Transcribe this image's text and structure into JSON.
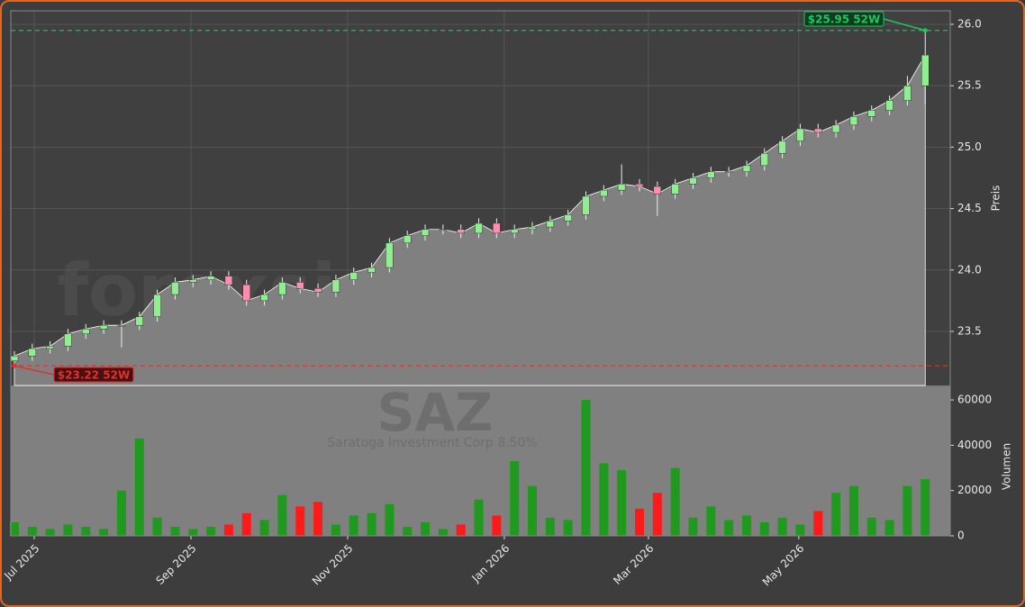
{
  "chart_data": [
    {
      "type": "candlestick",
      "watermark": "forexsignale.trade",
      "symbol": "SAZ",
      "subtitle": "Saratoga Investment Corp 8.50%",
      "ylabel": "Preis",
      "ylim": [
        23.06,
        26.11
      ],
      "yticks": [
        23.5,
        {
          "value": 24,
          "label": "24.0"
        },
        24.5,
        {
          "value": 25,
          "label": "25.0"
        },
        25.5,
        {
          "value": 26,
          "label": "26.0"
        }
      ],
      "grid": true,
      "up_color": "#90ee90",
      "down_color": "#ff8fb0",
      "area_color": "#808080",
      "open": [
        23.26,
        23.3,
        23.36,
        23.38,
        23.48,
        23.52,
        23.55,
        23.55,
        23.62,
        23.8,
        23.9,
        23.92,
        23.95,
        23.88,
        23.75,
        23.8,
        23.9,
        23.85,
        23.82,
        23.92,
        23.98,
        24.02,
        24.22,
        24.28,
        24.33,
        24.33,
        24.3,
        24.38,
        24.3,
        24.33,
        24.35,
        24.4,
        24.45,
        24.6,
        24.65,
        24.7,
        24.68,
        24.62,
        24.7,
        24.75,
        24.8,
        24.8,
        24.85,
        24.95,
        25.05,
        25.15,
        25.12,
        25.18,
        25.25,
        25.3,
        25.38,
        25.5
      ],
      "high": [
        23.34,
        23.4,
        23.42,
        23.52,
        23.56,
        23.59,
        23.59,
        23.66,
        23.84,
        23.94,
        23.96,
        23.99,
        23.99,
        23.92,
        23.84,
        23.94,
        23.94,
        23.89,
        23.96,
        24.02,
        24.06,
        24.26,
        24.32,
        24.37,
        24.37,
        24.37,
        24.42,
        24.42,
        24.37,
        24.39,
        24.44,
        24.49,
        24.64,
        24.69,
        24.86,
        24.74,
        24.72,
        24.74,
        24.79,
        24.84,
        24.84,
        24.89,
        24.99,
        25.09,
        25.19,
        25.19,
        25.22,
        25.29,
        25.34,
        25.42,
        25.58,
        25.95
      ],
      "low": [
        23.22,
        23.26,
        23.32,
        23.34,
        23.44,
        23.48,
        23.37,
        23.51,
        23.58,
        23.76,
        23.86,
        23.88,
        23.84,
        23.71,
        23.71,
        23.76,
        23.81,
        23.78,
        23.78,
        23.88,
        23.94,
        23.98,
        24.18,
        24.24,
        24.29,
        24.26,
        24.26,
        24.26,
        24.26,
        24.29,
        24.31,
        24.36,
        24.41,
        24.56,
        24.61,
        24.64,
        24.44,
        24.58,
        24.66,
        24.71,
        24.76,
        24.76,
        24.81,
        24.91,
        25.01,
        25.08,
        25.08,
        25.14,
        25.21,
        25.26,
        25.34,
        25.35
      ],
      "close": [
        23.3,
        23.36,
        23.38,
        23.48,
        23.52,
        23.55,
        23.55,
        23.62,
        23.8,
        23.9,
        23.92,
        23.95,
        23.88,
        23.75,
        23.8,
        23.9,
        23.85,
        23.82,
        23.92,
        23.98,
        24.02,
        24.22,
        24.28,
        24.33,
        24.33,
        24.3,
        24.38,
        24.3,
        24.33,
        24.35,
        24.4,
        24.45,
        24.6,
        24.65,
        24.7,
        24.68,
        24.62,
        24.7,
        24.75,
        24.8,
        24.8,
        24.85,
        24.95,
        25.05,
        25.15,
        25.12,
        25.18,
        25.25,
        25.3,
        25.38,
        25.5,
        25.75
      ],
      "annotations": [
        {
          "value": 25.95,
          "label": "$25.95 52W",
          "color": "#22c55e",
          "index": 51
        },
        {
          "value": 23.22,
          "label": "$23.22 52W",
          "color": "#e03030",
          "index": 0
        }
      ]
    },
    {
      "type": "bar",
      "ylabel": "Volumen",
      "ylim": [
        0,
        65600
      ],
      "yticks": [
        0,
        20000,
        40000,
        60000
      ],
      "xlim": [
        -0.2,
        52.4
      ],
      "xticks": [
        {
          "value": 1.11,
          "label": "Jul 2025"
        },
        {
          "value": 9.89,
          "label": "Sep 2025"
        },
        {
          "value": 18.66,
          "label": "Nov 2025"
        },
        {
          "value": 27.43,
          "label": "Jan 2026"
        },
        {
          "value": 35.5,
          "label": "Mar 2026"
        },
        {
          "value": 43.92,
          "label": "May 2026"
        }
      ],
      "up_color": "#1f9a1f",
      "down_color": "#ff1a1a",
      "values": [
        6000,
        4000,
        3000,
        5000,
        4000,
        3000,
        20000,
        43000,
        8000,
        4000,
        3000,
        4000,
        5000,
        10000,
        7000,
        18000,
        13000,
        15000,
        5000,
        9000,
        10000,
        14000,
        4000,
        6000,
        3000,
        5000,
        16000,
        9000,
        33000,
        22000,
        8000,
        7000,
        60000,
        32000,
        29000,
        12000,
        19000,
        30000,
        8000,
        13000,
        7000,
        9000,
        6000,
        8000,
        5000,
        11000,
        19000,
        22000,
        8000,
        7000,
        22000,
        25000
      ]
    }
  ]
}
